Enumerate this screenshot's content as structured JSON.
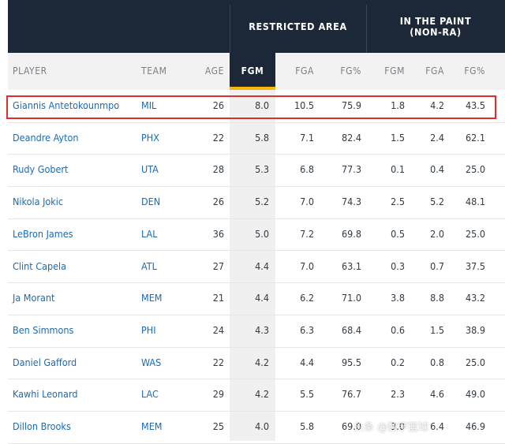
{
  "groups": {
    "restricted_area": "RESTRICTED AREA",
    "in_the_paint": "IN THE PAINT\n(NON-RA)"
  },
  "columns": {
    "player": "PLAYER",
    "team": "TEAM",
    "age": "AGE",
    "ra_fgm": "FGM",
    "ra_fga": "FGA",
    "ra_fgp": "FG%",
    "ip_fgm": "FGM",
    "ip_fga": "FGA",
    "ip_fgp": "FG%"
  },
  "rows": [
    {
      "player": "Giannis Antetokounmpo",
      "team": "MIL",
      "age": "26",
      "ra_fgm": "8.0",
      "ra_fga": "10.5",
      "ra_fgp": "75.9",
      "ip_fgm": "1.8",
      "ip_fga": "4.2",
      "ip_fgp": "43.5"
    },
    {
      "player": "Deandre Ayton",
      "team": "PHX",
      "age": "22",
      "ra_fgm": "5.8",
      "ra_fga": "7.1",
      "ra_fgp": "82.4",
      "ip_fgm": "1.5",
      "ip_fga": "2.4",
      "ip_fgp": "62.1"
    },
    {
      "player": "Rudy Gobert",
      "team": "UTA",
      "age": "28",
      "ra_fgm": "5.3",
      "ra_fga": "6.8",
      "ra_fgp": "77.3",
      "ip_fgm": "0.1",
      "ip_fga": "0.4",
      "ip_fgp": "25.0"
    },
    {
      "player": "Nikola Jokic",
      "team": "DEN",
      "age": "26",
      "ra_fgm": "5.2",
      "ra_fga": "7.0",
      "ra_fgp": "74.3",
      "ip_fgm": "2.5",
      "ip_fga": "5.2",
      "ip_fgp": "48.1"
    },
    {
      "player": "LeBron James",
      "team": "LAL",
      "age": "36",
      "ra_fgm": "5.0",
      "ra_fga": "7.2",
      "ra_fgp": "69.8",
      "ip_fgm": "0.5",
      "ip_fga": "2.0",
      "ip_fgp": "25.0"
    },
    {
      "player": "Clint Capela",
      "team": "ATL",
      "age": "27",
      "ra_fgm": "4.4",
      "ra_fga": "7.0",
      "ra_fgp": "63.1",
      "ip_fgm": "0.3",
      "ip_fga": "0.7",
      "ip_fgp": "37.5"
    },
    {
      "player": "Ja Morant",
      "team": "MEM",
      "age": "21",
      "ra_fgm": "4.4",
      "ra_fga": "6.2",
      "ra_fgp": "71.0",
      "ip_fgm": "3.8",
      "ip_fga": "8.8",
      "ip_fgp": "43.2"
    },
    {
      "player": "Ben Simmons",
      "team": "PHI",
      "age": "24",
      "ra_fgm": "4.3",
      "ra_fga": "6.3",
      "ra_fgp": "68.4",
      "ip_fgm": "0.6",
      "ip_fga": "1.5",
      "ip_fgp": "38.9"
    },
    {
      "player": "Daniel Gafford",
      "team": "WAS",
      "age": "22",
      "ra_fgm": "4.2",
      "ra_fga": "4.4",
      "ra_fgp": "95.5",
      "ip_fgm": "0.2",
      "ip_fga": "0.8",
      "ip_fgp": "25.0"
    },
    {
      "player": "Kawhi Leonard",
      "team": "LAC",
      "age": "29",
      "ra_fgm": "4.2",
      "ra_fga": "5.5",
      "ra_fgp": "76.7",
      "ip_fgm": "2.3",
      "ip_fga": "4.6",
      "ip_fgp": "49.0"
    },
    {
      "player": "Dillon Brooks",
      "team": "MEM",
      "age": "25",
      "ra_fgm": "4.0",
      "ra_fga": "5.8",
      "ra_fgp": "69.0",
      "ip_fgm": "3.0",
      "ip_fga": "6.4",
      "ip_fgp": "46.9"
    }
  ],
  "watermark": "头条 @数字篮球"
}
